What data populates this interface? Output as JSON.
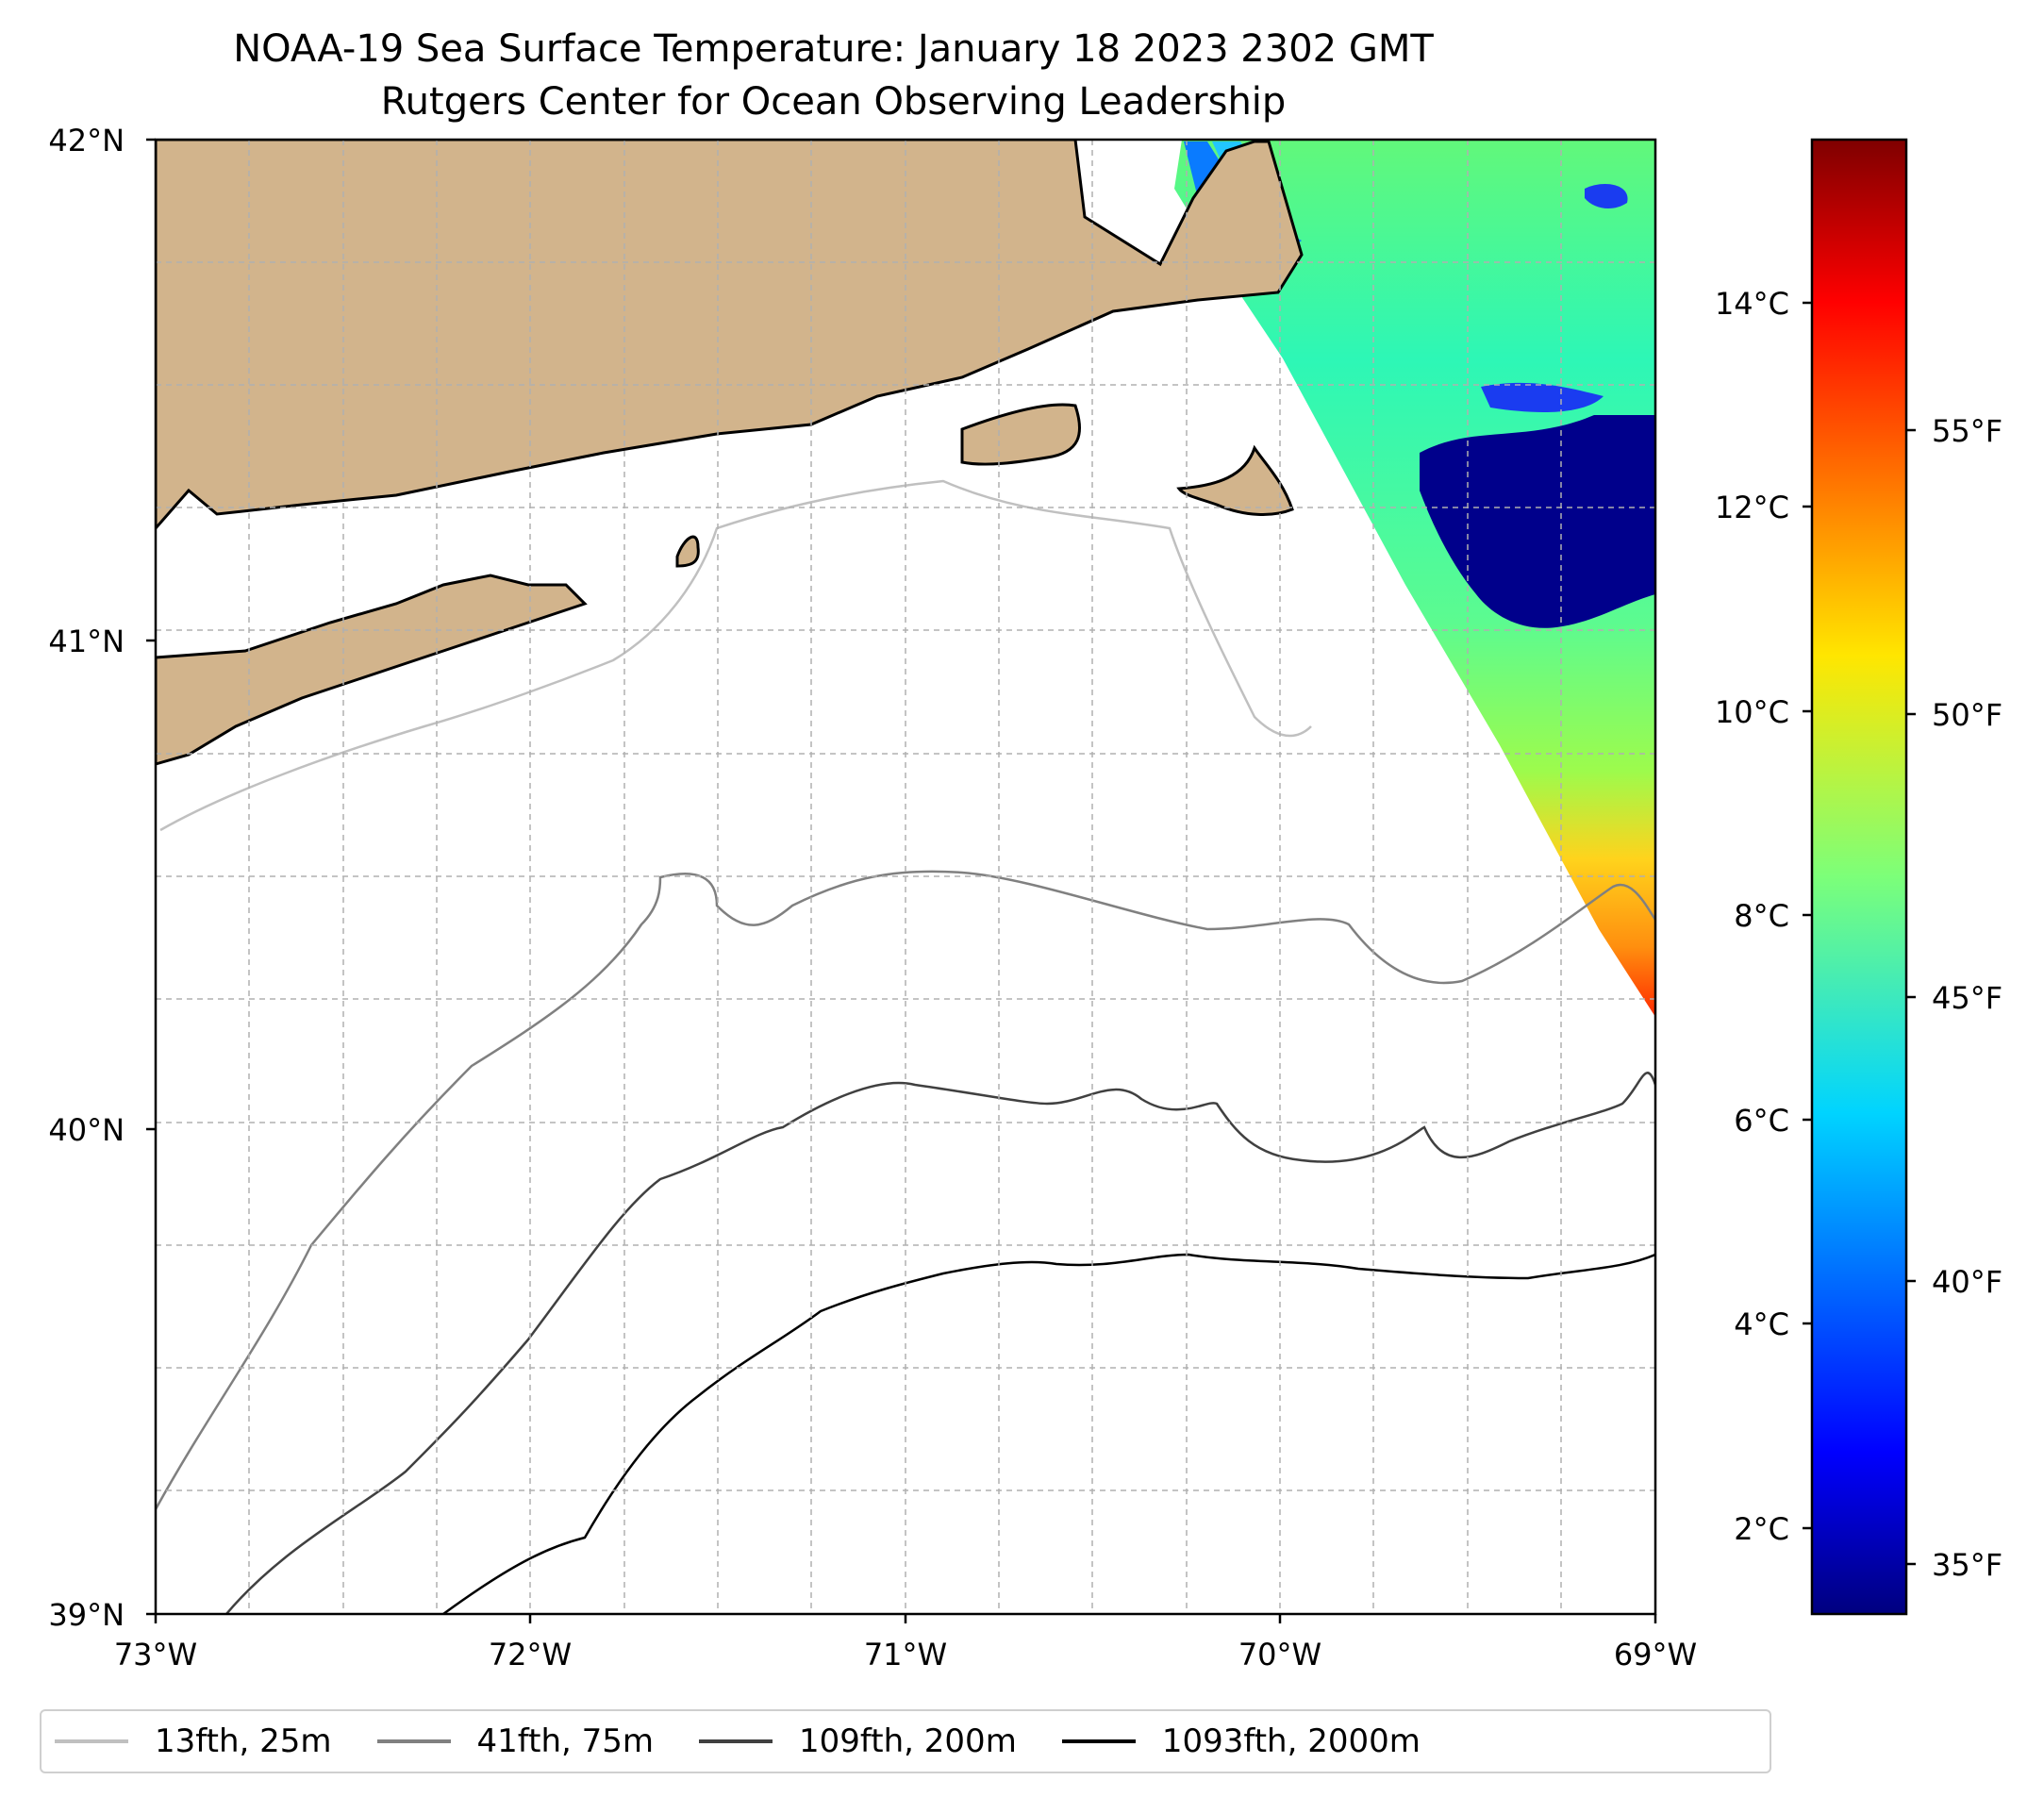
{
  "title": "NOAA-19 Sea Surface Temperature: January 18 2023 2302 GMT",
  "subtitle": "Rutgers Center for Ocean Observing Leadership",
  "map": {
    "lon_range": [
      -73,
      -69
    ],
    "lat_range": [
      39,
      42
    ],
    "lat_ticks": [
      {
        "value": 42,
        "label": "42°N"
      },
      {
        "value": 41,
        "label": "41°N"
      },
      {
        "value": 40,
        "label": "40°N"
      },
      {
        "value": 39,
        "label": "39°N"
      }
    ],
    "lon_ticks": [
      {
        "value": -73,
        "label": "73°W"
      },
      {
        "value": -72,
        "label": "72°W"
      },
      {
        "value": -71,
        "label": "71°W"
      },
      {
        "value": -70,
        "label": "70°W"
      },
      {
        "value": -69,
        "label": "69°W"
      }
    ],
    "gridlines": "dashed",
    "land_color": "#d2b48c",
    "ocean_color": "#ffffff"
  },
  "colorbar": {
    "colormap": "jet",
    "range_c": [
      1.4,
      15.9
    ],
    "celsius_ticks": [
      {
        "value": 2,
        "label": "2°C"
      },
      {
        "value": 4,
        "label": "4°C"
      },
      {
        "value": 6,
        "label": "6°C"
      },
      {
        "value": 8,
        "label": "8°C"
      },
      {
        "value": 10,
        "label": "10°C"
      },
      {
        "value": 12,
        "label": "12°C"
      },
      {
        "value": 14,
        "label": "14°C"
      }
    ],
    "fahrenheit_ticks": [
      {
        "value": 35,
        "label": "35°F"
      },
      {
        "value": 40,
        "label": "40°F"
      },
      {
        "value": 45,
        "label": "45°F"
      },
      {
        "value": 50,
        "label": "50°F"
      },
      {
        "value": 55,
        "label": "55°F"
      }
    ]
  },
  "legend": {
    "placement": "bottom",
    "items": [
      {
        "label": "13fth, 25m",
        "color": "#c0c0c0"
      },
      {
        "label": "41fth, 75m",
        "color": "#808080"
      },
      {
        "label": "109fth, 200m",
        "color": "#404040"
      },
      {
        "label": "1093fth, 2000m",
        "color": "#000000"
      }
    ]
  },
  "colors": {
    "contour_25m": "#c0c0c0",
    "contour_75m": "#808080",
    "contour_200m": "#404040",
    "contour_2000m": "#000000"
  }
}
